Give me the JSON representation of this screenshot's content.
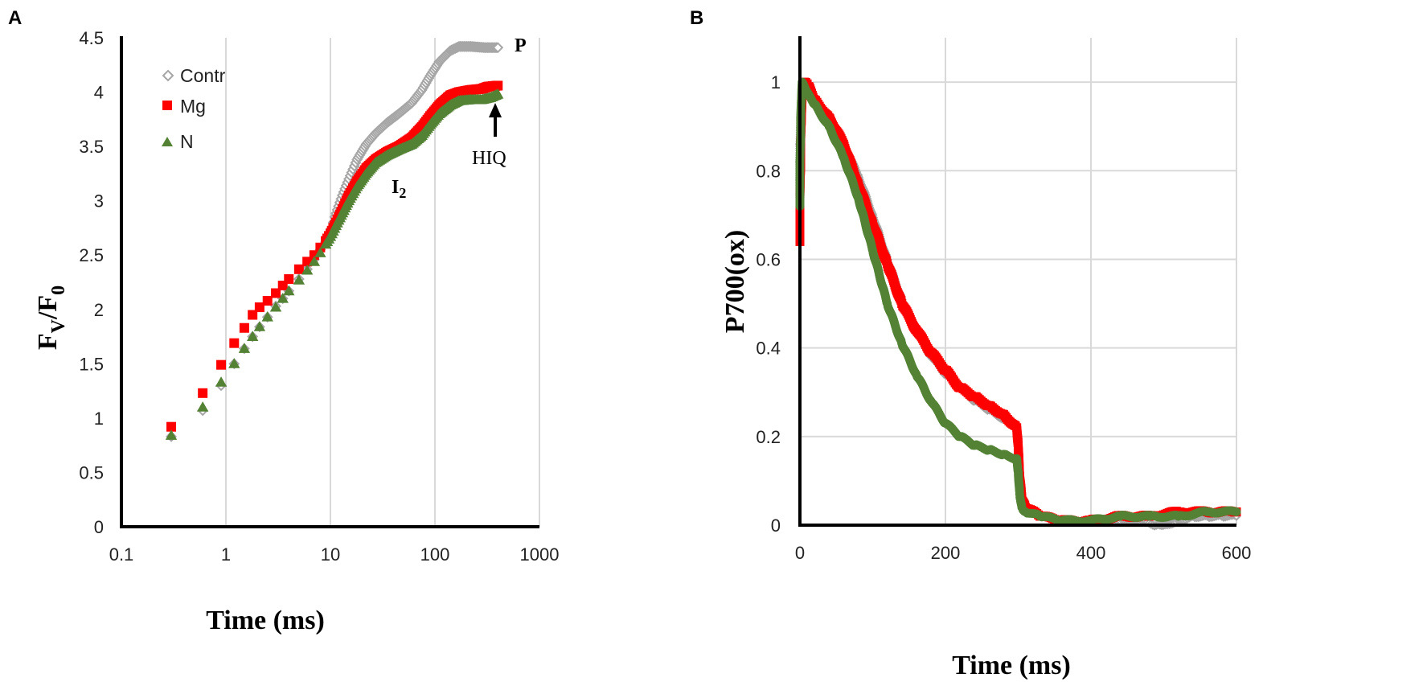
{
  "chart_data": [
    {
      "panel": "A",
      "type": "scatter",
      "x_scale": "log",
      "xlabel": "Time (ms)",
      "ylabel_main": "F",
      "ylabel_sub1": "V",
      "ylabel_slash": "/F",
      "ylabel_sub2": "0",
      "xlim": [
        0.1,
        1000
      ],
      "ylim": [
        0,
        4.5
      ],
      "xticks": [
        0.1,
        1,
        10,
        100,
        1000
      ],
      "yticks": [
        0,
        0.5,
        1,
        1.5,
        2,
        2.5,
        3,
        3.5,
        4,
        4.5
      ],
      "xtick_labels": [
        "0.1",
        "1",
        "10",
        "100",
        "1000"
      ],
      "ytick_labels": [
        "0",
        "0.5",
        "1",
        "1.5",
        "2",
        "2.5",
        "3",
        "3.5",
        "4",
        "4.5"
      ],
      "grid": "vertical",
      "legend_position": "top-left",
      "annotations": [
        {
          "text": "P",
          "x": 550,
          "y": 4.42
        },
        {
          "text": "I",
          "sub": "2",
          "x": 75,
          "y": 3.0
        },
        {
          "text": "HIQ",
          "x": 430,
          "y": 3.35,
          "arrow_to_y": 3.95
        }
      ],
      "series": [
        {
          "name": "Contr",
          "color": "#a6a6a6",
          "marker": "diamond",
          "points": [
            [
              0.3,
              0.83
            ],
            [
              0.6,
              1.07
            ],
            [
              0.9,
              1.3
            ],
            [
              1.2,
              1.5
            ],
            [
              1.5,
              1.64
            ],
            [
              1.8,
              1.75
            ],
            [
              2.1,
              1.84
            ],
            [
              2.5,
              1.93
            ],
            [
              3,
              2.03
            ],
            [
              3.5,
              2.1
            ],
            [
              4,
              2.17
            ],
            [
              5,
              2.28
            ],
            [
              6,
              2.37
            ],
            [
              7,
              2.46
            ],
            [
              8,
              2.55
            ],
            [
              9,
              2.62
            ],
            [
              10,
              2.7
            ],
            [
              11,
              2.85
            ],
            [
              13,
              3.05
            ],
            [
              15,
              3.2
            ],
            [
              18,
              3.38
            ],
            [
              22,
              3.52
            ],
            [
              27,
              3.62
            ],
            [
              35,
              3.72
            ],
            [
              45,
              3.8
            ],
            [
              60,
              3.9
            ],
            [
              75,
              4.02
            ],
            [
              90,
              4.15
            ],
            [
              110,
              4.28
            ],
            [
              140,
              4.38
            ],
            [
              170,
              4.42
            ],
            [
              220,
              4.42
            ],
            [
              300,
              4.41
            ],
            [
              400,
              4.41
            ]
          ]
        },
        {
          "name": "Mg",
          "color": "#ff0000",
          "marker": "square",
          "points": [
            [
              0.3,
              0.92
            ],
            [
              0.6,
              1.23
            ],
            [
              0.9,
              1.49
            ],
            [
              1.2,
              1.69
            ],
            [
              1.5,
              1.83
            ],
            [
              1.8,
              1.95
            ],
            [
              2.1,
              2.02
            ],
            [
              2.5,
              2.08
            ],
            [
              3,
              2.15
            ],
            [
              3.5,
              2.22
            ],
            [
              4,
              2.28
            ],
            [
              5,
              2.37
            ],
            [
              6,
              2.44
            ],
            [
              7,
              2.5
            ],
            [
              8,
              2.57
            ],
            [
              9,
              2.63
            ],
            [
              10,
              2.7
            ],
            [
              12,
              2.85
            ],
            [
              15,
              3.05
            ],
            [
              18,
              3.18
            ],
            [
              22,
              3.3
            ],
            [
              27,
              3.38
            ],
            [
              35,
              3.45
            ],
            [
              45,
              3.5
            ],
            [
              60,
              3.58
            ],
            [
              75,
              3.68
            ],
            [
              90,
              3.78
            ],
            [
              110,
              3.88
            ],
            [
              140,
              3.97
            ],
            [
              170,
              4.0
            ],
            [
              220,
              4.02
            ],
            [
              280,
              4.03
            ],
            [
              320,
              4.05
            ],
            [
              400,
              4.06
            ]
          ]
        },
        {
          "name": "N",
          "color": "#548235",
          "marker": "triangle",
          "points": [
            [
              0.3,
              0.84
            ],
            [
              0.6,
              1.1
            ],
            [
              0.9,
              1.33
            ],
            [
              1.2,
              1.5
            ],
            [
              1.5,
              1.64
            ],
            [
              1.8,
              1.75
            ],
            [
              2.1,
              1.84
            ],
            [
              2.5,
              1.93
            ],
            [
              3,
              2.02
            ],
            [
              3.5,
              2.1
            ],
            [
              4,
              2.17
            ],
            [
              5,
              2.27
            ],
            [
              6,
              2.36
            ],
            [
              7,
              2.44
            ],
            [
              8,
              2.52
            ],
            [
              9,
              2.6
            ],
            [
              10,
              2.67
            ],
            [
              12,
              2.82
            ],
            [
              15,
              3.0
            ],
            [
              18,
              3.13
            ],
            [
              22,
              3.25
            ],
            [
              27,
              3.35
            ],
            [
              35,
              3.42
            ],
            [
              45,
              3.47
            ],
            [
              60,
              3.52
            ],
            [
              75,
              3.6
            ],
            [
              90,
              3.7
            ],
            [
              110,
              3.8
            ],
            [
              140,
              3.88
            ],
            [
              170,
              3.92
            ],
            [
              220,
              3.93
            ],
            [
              280,
              3.93
            ],
            [
              340,
              3.95
            ],
            [
              400,
              3.98
            ]
          ]
        }
      ]
    },
    {
      "panel": "B",
      "type": "scatter",
      "x_scale": "linear",
      "xlabel": "Time (ms)",
      "ylabel": "P700(ox)",
      "xlim": [
        0,
        600
      ],
      "ylim": [
        0,
        1.1
      ],
      "xticks": [
        0,
        200,
        400,
        600
      ],
      "yticks": [
        0,
        0.2,
        0.4,
        0.6,
        0.8,
        1
      ],
      "xtick_labels": [
        "0",
        "200",
        "400",
        "600"
      ],
      "ytick_labels": [
        "0",
        "0.2",
        "0.4",
        "0.6",
        "0.8",
        "1"
      ],
      "grid": "both",
      "series": [
        {
          "name": "Contr",
          "color": "#a6a6a6",
          "marker": "diamond",
          "points": [
            [
              0,
              0.74
            ],
            [
              0,
              0.78
            ],
            [
              0,
              0.82
            ],
            [
              0,
              0.86
            ],
            [
              1,
              0.9
            ],
            [
              2,
              0.95
            ],
            [
              3,
              0.99
            ],
            [
              10,
              0.98
            ],
            [
              20,
              0.95
            ],
            [
              40,
              0.91
            ],
            [
              60,
              0.86
            ],
            [
              80,
              0.79
            ],
            [
              100,
              0.7
            ],
            [
              120,
              0.6
            ],
            [
              140,
              0.51
            ],
            [
              160,
              0.44
            ],
            [
              180,
              0.38
            ],
            [
              200,
              0.34
            ],
            [
              220,
              0.31
            ],
            [
              240,
              0.28
            ],
            [
              260,
              0.26
            ],
            [
              280,
              0.24
            ],
            [
              298,
              0.22
            ],
            [
              300,
              0.17
            ],
            [
              302,
              0.1
            ],
            [
              305,
              0.05
            ],
            [
              310,
              0.04
            ],
            [
              330,
              0.02
            ],
            [
              360,
              0.01
            ],
            [
              400,
              0.01
            ],
            [
              440,
              0.01
            ],
            [
              470,
              0.01
            ],
            [
              490,
              0.0
            ],
            [
              500,
              0.0
            ],
            [
              520,
              0.01
            ],
            [
              540,
              0.02
            ],
            [
              560,
              0.02
            ],
            [
              580,
              0.02
            ],
            [
              600,
              0.02
            ]
          ]
        },
        {
          "name": "Mg",
          "color": "#ff0000",
          "marker": "square",
          "points": [
            [
              0,
              0.64
            ],
            [
              0,
              0.69
            ],
            [
              0,
              0.75
            ],
            [
              1,
              0.82
            ],
            [
              1,
              0.87
            ],
            [
              2,
              0.92
            ],
            [
              3,
              0.97
            ],
            [
              6,
              1.0
            ],
            [
              12,
              0.99
            ],
            [
              20,
              0.96
            ],
            [
              40,
              0.92
            ],
            [
              60,
              0.86
            ],
            [
              80,
              0.77
            ],
            [
              100,
              0.68
            ],
            [
              120,
              0.59
            ],
            [
              140,
              0.5
            ],
            [
              160,
              0.44
            ],
            [
              180,
              0.39
            ],
            [
              200,
              0.35
            ],
            [
              220,
              0.31
            ],
            [
              240,
              0.29
            ],
            [
              260,
              0.27
            ],
            [
              280,
              0.25
            ],
            [
              298,
              0.22
            ],
            [
              300,
              0.18
            ],
            [
              302,
              0.11
            ],
            [
              305,
              0.06
            ],
            [
              310,
              0.04
            ],
            [
              330,
              0.02
            ],
            [
              360,
              0.01
            ],
            [
              400,
              0.01
            ],
            [
              440,
              0.02
            ],
            [
              480,
              0.02
            ],
            [
              520,
              0.03
            ],
            [
              560,
              0.03
            ],
            [
              600,
              0.03
            ]
          ]
        },
        {
          "name": "N",
          "color": "#548235",
          "marker": "circle",
          "points": [
            [
              0,
              0.72
            ],
            [
              0,
              0.77
            ],
            [
              0,
              0.82
            ],
            [
              1,
              0.88
            ],
            [
              1,
              0.92
            ],
            [
              2,
              0.96
            ],
            [
              3,
              1.0
            ],
            [
              8,
              0.98
            ],
            [
              20,
              0.95
            ],
            [
              40,
              0.9
            ],
            [
              60,
              0.83
            ],
            [
              80,
              0.74
            ],
            [
              100,
              0.62
            ],
            [
              120,
              0.5
            ],
            [
              140,
              0.41
            ],
            [
              160,
              0.34
            ],
            [
              180,
              0.28
            ],
            [
              200,
              0.23
            ],
            [
              220,
              0.2
            ],
            [
              240,
              0.18
            ],
            [
              260,
              0.17
            ],
            [
              280,
              0.16
            ],
            [
              298,
              0.15
            ],
            [
              300,
              0.12
            ],
            [
              302,
              0.07
            ],
            [
              305,
              0.04
            ],
            [
              310,
              0.03
            ],
            [
              330,
              0.02
            ],
            [
              360,
              0.01
            ],
            [
              400,
              0.01
            ],
            [
              440,
              0.02
            ],
            [
              480,
              0.02
            ],
            [
              520,
              0.02
            ],
            [
              560,
              0.03
            ],
            [
              600,
              0.03
            ]
          ]
        }
      ]
    }
  ]
}
